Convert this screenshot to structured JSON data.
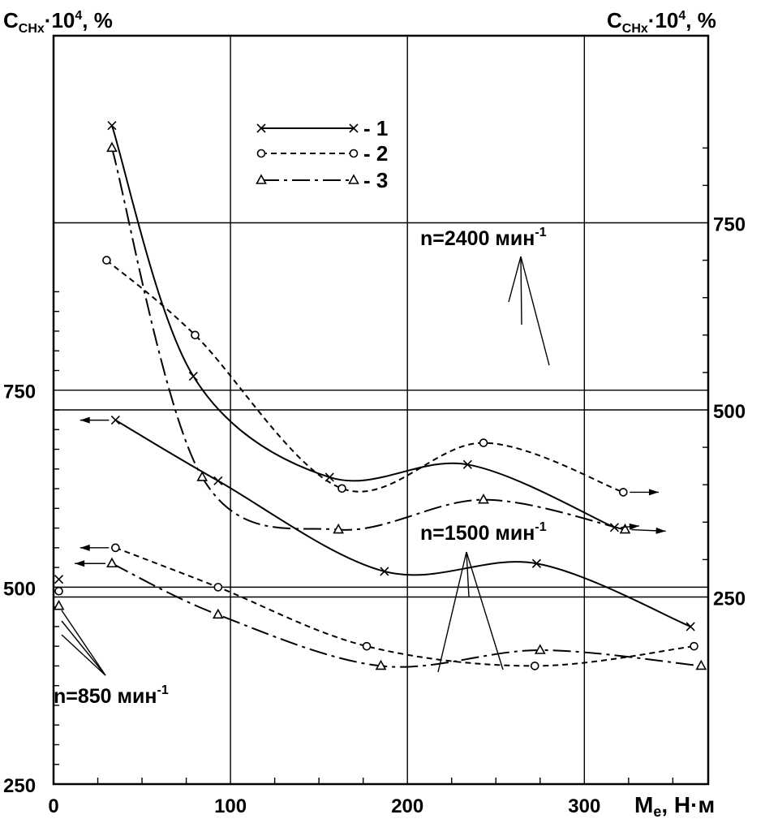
{
  "chart_data": {
    "type": "line",
    "xlabel": "Mₑ, Н·м",
    "xlabel_main": "M",
    "xlabel_sub": "e",
    "xlabel_unit": ", Н·м",
    "left_axis_title": {
      "main": "C",
      "sub": "CHx",
      "mid": "·10",
      "sup": "4",
      "tail": ", %"
    },
    "right_axis_title": {
      "main": "C",
      "sub": "CHx",
      "mid": "·10",
      "sup": "4",
      "tail": ", %"
    },
    "xlim": [
      0,
      370
    ],
    "x_ticks": [
      "0",
      "100",
      "200",
      "300"
    ],
    "x_tick_values": [
      0,
      100,
      200,
      300
    ],
    "left_ylim": [
      250,
      1200
    ],
    "left_y_ticks": [
      "250",
      "500",
      "750"
    ],
    "left_y_tick_values": [
      250,
      500,
      750
    ],
    "right_ylim": [
      0,
      1000
    ],
    "right_y_ticks": [
      "250",
      "500",
      "750"
    ],
    "right_y_tick_values": [
      250,
      500,
      750
    ],
    "grid": true,
    "legend_position": "top-center",
    "legend": [
      {
        "label": "1",
        "marker": "x",
        "dash": "solid"
      },
      {
        "label": "2",
        "marker": "o",
        "dash": "dashed"
      },
      {
        "label": "3",
        "marker": "triangle",
        "dash": "dashdot"
      }
    ],
    "annotations": [
      {
        "id": "n2400",
        "main": "n=2400 мин",
        "sup": "-1"
      },
      {
        "id": "n1500",
        "main": "n=1500 мин",
        "sup": "-1"
      },
      {
        "id": "n850",
        "main": "n=850 мин",
        "sup": "-1"
      }
    ],
    "series": [
      {
        "group": "n=2400",
        "axis": "right",
        "curve": 1,
        "x": [
          33,
          79,
          156,
          234,
          317
        ],
        "y": [
          880,
          545,
          410,
          427,
          343
        ],
        "arrow_end": [
          331,
          345
        ]
      },
      {
        "group": "n=2400",
        "axis": "right",
        "curve": 2,
        "x": [
          30,
          80,
          163,
          243,
          322
        ],
        "y": [
          700,
          600,
          395,
          456,
          390
        ],
        "arrow_end": [
          342,
          390
        ]
      },
      {
        "group": "n=2400",
        "axis": "right",
        "curve": 3,
        "x": [
          33,
          84,
          161,
          243,
          323
        ],
        "y": [
          850,
          410,
          340,
          380,
          340
        ],
        "arrow_end": [
          346,
          338
        ]
      },
      {
        "group": "n=1500",
        "axis": "left",
        "curve": 1,
        "x": [
          35,
          93,
          187,
          273,
          360
        ],
        "y": [
          712,
          635,
          520,
          530,
          450
        ],
        "arrow_end": [
          15,
          712
        ]
      },
      {
        "group": "n=1500",
        "axis": "left",
        "curve": 2,
        "x": [
          35,
          93,
          177,
          272,
          362
        ],
        "y": [
          550,
          500,
          425,
          400,
          425
        ],
        "arrow_end": [
          15,
          550
        ]
      },
      {
        "group": "n=1500",
        "axis": "left",
        "curve": 3,
        "x": [
          33,
          93,
          185,
          275,
          366
        ],
        "y": [
          530,
          465,
          400,
          420,
          400
        ],
        "arrow_end": [
          12,
          530
        ]
      },
      {
        "group": "n=850",
        "axis": "left",
        "curve": 1,
        "x": [
          3
        ],
        "y": [
          510
        ]
      },
      {
        "group": "n=850",
        "axis": "left",
        "curve": 2,
        "x": [
          3
        ],
        "y": [
          495
        ]
      },
      {
        "group": "n=850",
        "axis": "left",
        "curve": 3,
        "x": [
          3
        ],
        "y": [
          476
        ]
      }
    ]
  }
}
